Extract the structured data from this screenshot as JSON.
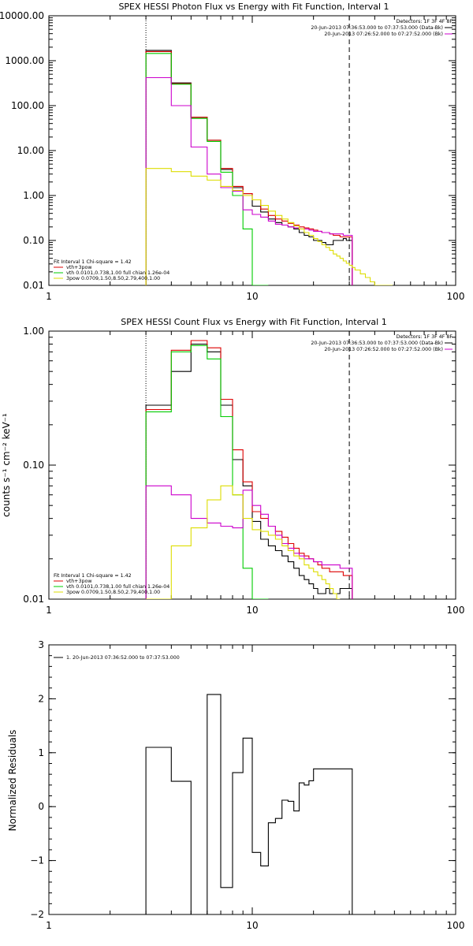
{
  "chart_data": [
    {
      "type": "line",
      "title": "SPEX HESSI Photon Flux vs Energy with Fit Function, Interval 1",
      "x_scale": "log",
      "y_scale": "log",
      "xlim": [
        1,
        100
      ],
      "ylim": [
        0.01,
        10000
      ],
      "x_tick_labels": [
        "1",
        "10",
        "100"
      ],
      "y_ticks": [
        10000,
        1000,
        100,
        10,
        1,
        0.1,
        0.01
      ],
      "y_tick_labels": [
        "10000.00",
        "1000.00",
        "100.00",
        "10.00",
        "1.00",
        "0.10",
        "0.01"
      ],
      "ylabel": "",
      "xlabel": "",
      "vlines": [
        {
          "x": 3,
          "style": "dotted"
        },
        {
          "x": 30,
          "style": "dashed"
        }
      ],
      "legend_right": {
        "header": "Detectors: 1F 3F 4F 8F",
        "entries": [
          {
            "text": "20-Jun-2013 07:36:53.000 to 07:37:53.000 (Data-Bk)",
            "color": "#000000"
          },
          {
            "text": "20-Jun-2013 07:26:52.000 to 07:27:52.000 (Bk)",
            "color": "#cc00cc"
          }
        ]
      },
      "legend_left": {
        "header": "Fit Interval 1    Chi-square = 1.42",
        "entries": [
          {
            "text": "vth+3pow",
            "color": "#dd0000"
          },
          {
            "text": "vth 0.0101,0.738,1.00  full chian 1.26e-04",
            "color": "#00cc00"
          },
          {
            "text": "3pow 0.0709,1.50,8.50,2.79,400,1.00",
            "color": "#dddd00"
          }
        ]
      },
      "series": [
        {
          "color": "#000000",
          "x": [
            3,
            4,
            5,
            6,
            7,
            8,
            9,
            10,
            11,
            12,
            13,
            14,
            15,
            16,
            17,
            18,
            19,
            20,
            21,
            22,
            23,
            24,
            25,
            26,
            27,
            28,
            29,
            30
          ],
          "values": [
            1700,
            320,
            55,
            17,
            3.8,
            1.5,
            1.1,
            0.58,
            0.43,
            0.3,
            0.25,
            0.22,
            0.2,
            0.18,
            0.15,
            0.13,
            0.12,
            0.1,
            0.1,
            0.09,
            0.08,
            0.08,
            0.1,
            0.1,
            0.1,
            0.11,
            0.1,
            0.1
          ]
        },
        {
          "color": "#dd0000",
          "x": [
            3,
            4,
            5,
            6,
            7,
            8,
            9,
            10,
            11,
            12,
            13,
            14,
            15,
            16,
            17,
            18,
            19,
            20,
            21,
            22,
            23,
            24,
            25,
            26,
            27,
            28,
            29,
            30
          ],
          "values": [
            1600,
            310,
            55,
            17,
            4,
            1.6,
            1.1,
            0.8,
            0.5,
            0.36,
            0.3,
            0.27,
            0.24,
            0.22,
            0.2,
            0.19,
            0.18,
            0.17,
            0.16,
            0.15,
            0.15,
            0.14,
            0.13,
            0.13,
            0.12,
            0.12,
            0.12,
            0.12
          ]
        },
        {
          "color": "#00cc00",
          "x": [
            3,
            4,
            5,
            6,
            7,
            8,
            9,
            10,
            11
          ],
          "values": [
            1450,
            300,
            52,
            16,
            3.3,
            1.0,
            0.18,
            0.01,
            0.01
          ]
        },
        {
          "color": "#cc00cc",
          "x": [
            3,
            4,
            5,
            6,
            7,
            8,
            9,
            10,
            11,
            12,
            13,
            14,
            15,
            16,
            17,
            18,
            19,
            20,
            21,
            22,
            23,
            24,
            25,
            26,
            27,
            28,
            29,
            30
          ],
          "values": [
            420,
            100,
            12,
            3,
            1.5,
            1.25,
            0.48,
            0.38,
            0.33,
            0.27,
            0.23,
            0.22,
            0.2,
            0.19,
            0.18,
            0.18,
            0.17,
            0.16,
            0.16,
            0.15,
            0.15,
            0.14,
            0.14,
            0.14,
            0.14,
            0.13,
            0.13,
            0.13
          ]
        },
        {
          "color": "#dddd00",
          "x": [
            3,
            4,
            5,
            6,
            7,
            8,
            9,
            10,
            11,
            12,
            13,
            14,
            15,
            16,
            17,
            18,
            19,
            20,
            21,
            22,
            23,
            24,
            25,
            26,
            27,
            28,
            29,
            30,
            31,
            32,
            34,
            36,
            38,
            40,
            43,
            46
          ],
          "values": [
            4,
            3.4,
            2.7,
            2.2,
            1.6,
            1.3,
            1.0,
            0.8,
            0.6,
            0.45,
            0.36,
            0.3,
            0.25,
            0.21,
            0.18,
            0.15,
            0.13,
            0.11,
            0.095,
            0.08,
            0.07,
            0.06,
            0.05,
            0.045,
            0.04,
            0.035,
            0.031,
            0.028,
            0.025,
            0.022,
            0.018,
            0.015,
            0.012,
            0.01,
            0.01,
            0.01
          ]
        }
      ]
    },
    {
      "type": "line",
      "title": "SPEX HESSI Count Flux vs Energy with Fit Function, Interval 1",
      "x_scale": "log",
      "y_scale": "log",
      "xlim": [
        1,
        100
      ],
      "ylim": [
        0.01,
        1
      ],
      "x_tick_labels": [
        "1",
        "10",
        "100"
      ],
      "y_ticks": [
        1,
        0.1,
        0.01
      ],
      "y_tick_labels": [
        "1.00",
        "0.10",
        "0.01"
      ],
      "ylabel": "counts s⁻¹ cm⁻² keV⁻¹",
      "xlabel": "",
      "vlines": [
        {
          "x": 3,
          "style": "dotted"
        },
        {
          "x": 30,
          "style": "dashed"
        }
      ],
      "legend_right": {
        "header": "Detectors: 1F 3F 4F 8F",
        "entries": [
          {
            "text": "20-Jun-2013 07:36:53.000 to 07:37:53.000 (Data-Bk)",
            "color": "#000000"
          },
          {
            "text": "20-Jun-2013 07:26:52.000 to 07:27:52.000 (Bk)",
            "color": "#cc00cc"
          }
        ]
      },
      "legend_left": {
        "header": "Fit Interval 1    Chi-square = 1.42",
        "entries": [
          {
            "text": "vth+3pow",
            "color": "#dd0000"
          },
          {
            "text": "vth 0.0101,0.738,1.00  full chian 1.26e-04",
            "color": "#00cc00"
          },
          {
            "text": "3pow 0.0709,1.50,8.50,2.79,400,1.00",
            "color": "#dddd00"
          }
        ]
      },
      "series": [
        {
          "color": "#000000",
          "x": [
            3,
            4,
            5,
            6,
            7,
            8,
            9,
            10,
            11,
            12,
            13,
            14,
            15,
            16,
            17,
            18,
            19,
            20,
            21,
            22,
            23,
            24,
            25,
            26,
            27,
            28,
            29,
            30
          ],
          "values": [
            0.28,
            0.5,
            0.8,
            0.7,
            0.28,
            0.11,
            0.07,
            0.038,
            0.028,
            0.025,
            0.023,
            0.021,
            0.019,
            0.017,
            0.015,
            0.014,
            0.013,
            0.012,
            0.011,
            0.011,
            0.012,
            0.011,
            0.011,
            0.011,
            0.012,
            0.012,
            0.012,
            0.012
          ]
        },
        {
          "color": "#dd0000",
          "x": [
            3,
            4,
            5,
            6,
            7,
            8,
            9,
            10,
            11,
            12,
            13,
            14,
            15,
            16,
            17,
            18,
            19,
            20,
            21,
            22,
            23,
            24,
            25,
            26,
            27,
            28,
            29,
            30
          ],
          "values": [
            0.26,
            0.72,
            0.85,
            0.75,
            0.31,
            0.13,
            0.075,
            0.045,
            0.04,
            0.035,
            0.032,
            0.029,
            0.026,
            0.024,
            0.022,
            0.021,
            0.02,
            0.019,
            0.018,
            0.017,
            0.017,
            0.016,
            0.016,
            0.016,
            0.016,
            0.015,
            0.015,
            0.015
          ]
        },
        {
          "color": "#00cc00",
          "x": [
            3,
            4,
            5,
            6,
            7,
            8,
            9,
            10,
            11
          ],
          "values": [
            0.25,
            0.7,
            0.78,
            0.62,
            0.23,
            0.06,
            0.017,
            0.01,
            0.01
          ]
        },
        {
          "color": "#cc00cc",
          "x": [
            3,
            4,
            5,
            6,
            7,
            8,
            9,
            10,
            11,
            12,
            13,
            14,
            15,
            16,
            17,
            18,
            19,
            20,
            21,
            22,
            23,
            24,
            25,
            26,
            27,
            28,
            29,
            30
          ],
          "values": [
            0.07,
            0.06,
            0.04,
            0.037,
            0.035,
            0.034,
            0.065,
            0.05,
            0.043,
            0.035,
            0.03,
            0.026,
            0.024,
            0.022,
            0.021,
            0.02,
            0.02,
            0.019,
            0.019,
            0.018,
            0.018,
            0.018,
            0.018,
            0.018,
            0.017,
            0.017,
            0.017,
            0.017
          ]
        },
        {
          "color": "#dddd00",
          "x": [
            3,
            4,
            5,
            6,
            7,
            8,
            9,
            10,
            11,
            12,
            13,
            14,
            15,
            16,
            17,
            18,
            19,
            20,
            21,
            22,
            23,
            24,
            25,
            26
          ],
          "values": [
            0.01,
            0.025,
            0.034,
            0.055,
            0.07,
            0.06,
            0.04,
            0.033,
            0.032,
            0.03,
            0.028,
            0.025,
            0.023,
            0.021,
            0.02,
            0.018,
            0.017,
            0.016,
            0.015,
            0.014,
            0.013,
            0.012,
            0.011,
            0.01
          ]
        }
      ]
    },
    {
      "type": "line",
      "title": "",
      "x_scale": "log",
      "y_scale": "linear",
      "xlim": [
        1,
        100
      ],
      "ylim": [
        -2,
        3
      ],
      "x_tick_labels": [
        "1",
        "10",
        "100"
      ],
      "y_ticks": [
        3,
        2,
        1,
        0,
        -1,
        -2
      ],
      "y_tick_labels": [
        "3",
        "2",
        "1",
        "0",
        "−1",
        "−2"
      ],
      "ylabel": "Normalized Residuals",
      "xlabel": "",
      "legend_left": {
        "header": "",
        "entries": [
          {
            "text": "1. 20-Jun-2013 07:36:52.000 to 07:37:53.000",
            "color": "#000000"
          }
        ]
      },
      "series": [
        {
          "color": "#000000",
          "x": [
            3,
            4,
            5,
            6,
            7,
            8,
            9,
            10,
            11,
            12,
            13,
            14,
            15,
            16,
            17,
            18,
            19,
            20,
            21,
            22,
            23,
            24,
            25,
            26,
            27,
            28,
            29,
            30
          ],
          "values": [
            1.1,
            0.47,
            -2.0,
            2.08,
            -1.5,
            0.63,
            1.27,
            -0.85,
            -1.1,
            -0.3,
            -0.22,
            0.12,
            0.1,
            -0.08,
            0.44,
            0.4,
            0.48,
            0.7,
            0.7,
            0.7,
            0.7,
            0.7,
            0.7,
            0.7,
            0.7,
            0.7,
            0.7,
            0.7
          ]
        }
      ]
    }
  ]
}
